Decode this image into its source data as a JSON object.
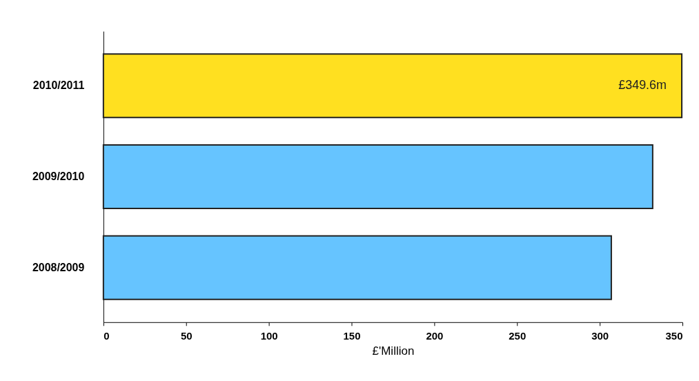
{
  "chart_data": {
    "type": "bar",
    "orientation": "horizontal",
    "xlabel": "£'Million",
    "categories": [
      "2010/2011",
      "2009/2010",
      "2008/2009"
    ],
    "values": [
      349.6,
      332,
      307
    ],
    "colors": [
      "#ffe020",
      "#66c4ff",
      "#66c4ff"
    ],
    "value_labels": [
      "£349.6m",
      null,
      null
    ],
    "xlim": [
      0,
      350
    ],
    "xticks": [
      0,
      50,
      100,
      150,
      200,
      250,
      300,
      350
    ],
    "grid": false
  }
}
